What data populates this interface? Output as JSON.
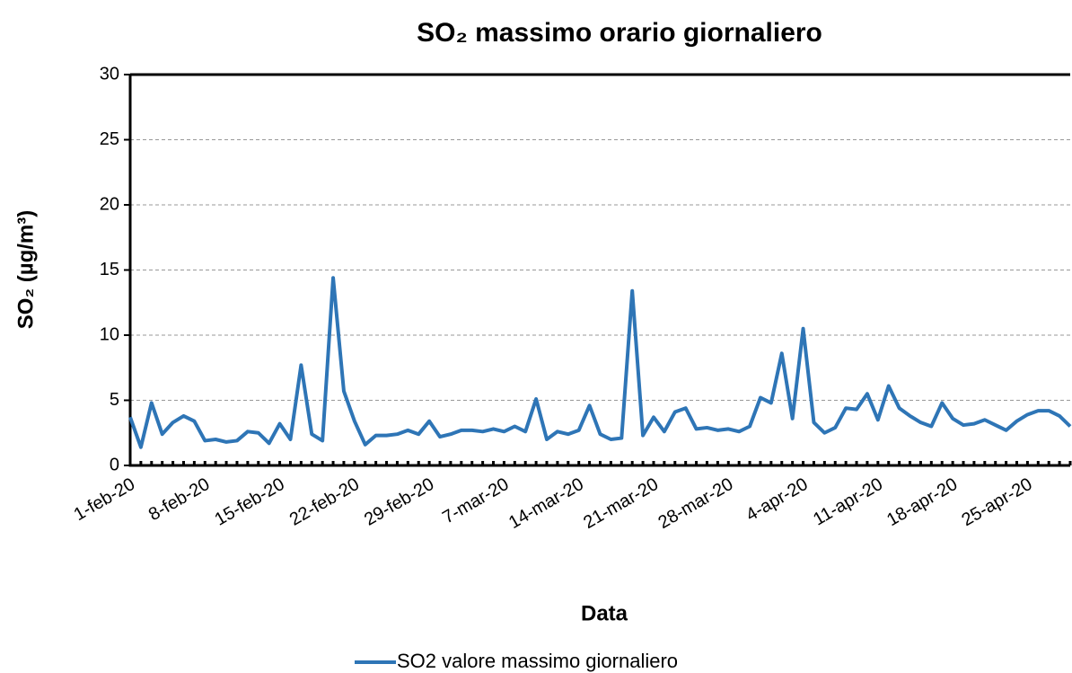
{
  "chart_data": {
    "type": "line",
    "title": "SO₂ massimo orario giornaliero",
    "x_label": "Data",
    "y_label": "SO₂ (µg/m³)",
    "categories": [
      "1-feb-20",
      null,
      null,
      null,
      null,
      null,
      null,
      "8-feb-20",
      null,
      null,
      null,
      null,
      null,
      null,
      "15-feb-20",
      null,
      null,
      null,
      null,
      null,
      null,
      "22-feb-20",
      null,
      null,
      null,
      null,
      null,
      null,
      "29-feb-20",
      null,
      null,
      null,
      null,
      null,
      null,
      "7-mar-20",
      null,
      null,
      null,
      null,
      null,
      null,
      "14-mar-20",
      null,
      null,
      null,
      null,
      null,
      null,
      "21-mar-20",
      null,
      null,
      null,
      null,
      null,
      null,
      "28-mar-20",
      null,
      null,
      null,
      null,
      null,
      null,
      "4-apr-20",
      null,
      null,
      null,
      null,
      null,
      null,
      "11-apr-20",
      null,
      null,
      null,
      null,
      null,
      null,
      "18-apr-20",
      null,
      null,
      null,
      null,
      null,
      null,
      "25-apr-20",
      null,
      null,
      null,
      null
    ],
    "series": [
      {
        "name": "SO2 valore massimo giornaliero",
        "color": "#2e75b6",
        "values": [
          3.7,
          1.4,
          4.8,
          2.4,
          3.3,
          3.8,
          3.4,
          1.9,
          2.0,
          1.8,
          1.9,
          2.6,
          2.5,
          1.7,
          3.2,
          2.0,
          7.7,
          2.4,
          1.9,
          14.4,
          5.7,
          3.4,
          1.6,
          2.3,
          2.3,
          2.4,
          2.7,
          2.4,
          3.4,
          2.2,
          2.4,
          2.7,
          2.7,
          2.6,
          2.8,
          2.6,
          3.0,
          2.6,
          5.1,
          2.0,
          2.6,
          2.4,
          2.7,
          4.6,
          2.4,
          2.0,
          2.1,
          13.4,
          2.3,
          3.7,
          2.6,
          4.1,
          4.4,
          2.8,
          2.9,
          2.7,
          2.8,
          2.6,
          3.0,
          5.2,
          4.8,
          8.6,
          3.6,
          10.5,
          3.3,
          2.5,
          2.9,
          4.4,
          4.3,
          5.5,
          3.5,
          6.1,
          4.4,
          3.8,
          3.3,
          3.0,
          4.8,
          3.6,
          3.1,
          3.2,
          3.5,
          3.1,
          2.7,
          3.4,
          3.9,
          4.2,
          4.2,
          3.8,
          3.0
        ]
      }
    ],
    "ylim": [
      0,
      30
    ],
    "yticks": [
      0,
      5,
      10,
      15,
      20,
      25,
      30
    ],
    "grid": true,
    "legend": "bottom"
  }
}
